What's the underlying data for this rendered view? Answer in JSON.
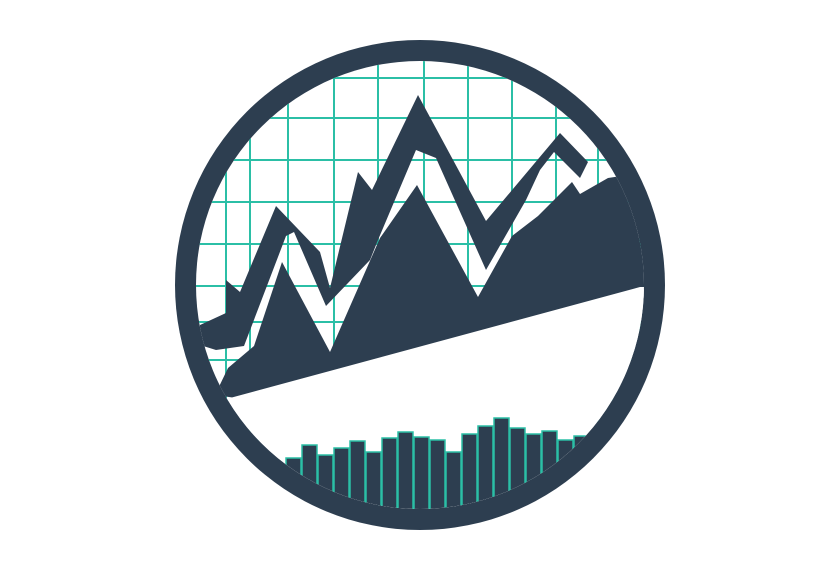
{
  "logo": {
    "icon": "stock-chart-logo-icon",
    "colors": {
      "background": "#ffffff",
      "ring": "#2d3e50",
      "face": "#ffffff",
      "grid": "#2bbfa6",
      "mountain": "#2d3e50",
      "bars": "#2d3e50",
      "bar_outline": "#2bbfa6"
    }
  }
}
